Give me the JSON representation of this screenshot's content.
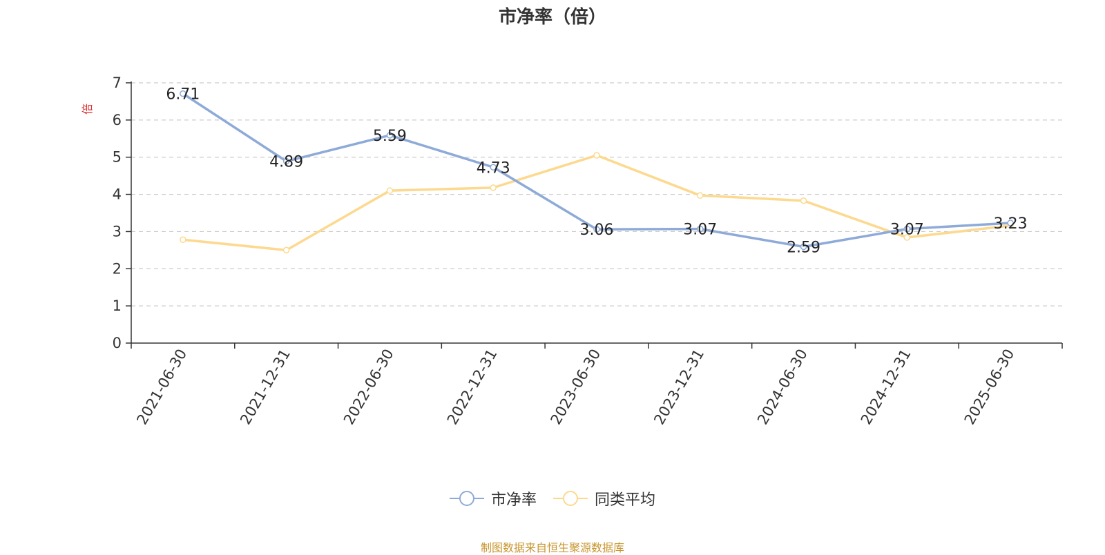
{
  "chart_data": {
    "type": "line",
    "title": "市净率（倍）",
    "ylabel": "倍",
    "xlabel": "",
    "categories": [
      "2021-06-30",
      "2021-12-31",
      "2022-06-30",
      "2022-12-31",
      "2023-06-30",
      "2023-12-31",
      "2024-06-30",
      "2024-12-31",
      "2025-06-30"
    ],
    "ylim": [
      0,
      7
    ],
    "yticks": [
      "0",
      "1",
      "2",
      "3",
      "4",
      "5",
      "6",
      "7"
    ],
    "grid": true,
    "legend_position": "bottom",
    "series": [
      {
        "name": "市净率",
        "color": "#8eaad8",
        "show_labels": true,
        "values": [
          6.71,
          4.89,
          5.59,
          4.73,
          3.06,
          3.07,
          2.59,
          3.07,
          3.23
        ]
      },
      {
        "name": "同类平均",
        "color": "#fcd98e",
        "show_labels": false,
        "values": [
          2.78,
          2.5,
          4.1,
          4.18,
          5.05,
          3.97,
          3.83,
          2.84,
          3.16
        ]
      }
    ]
  },
  "footer": {
    "source": "制图数据来自恒生聚源数据库"
  }
}
